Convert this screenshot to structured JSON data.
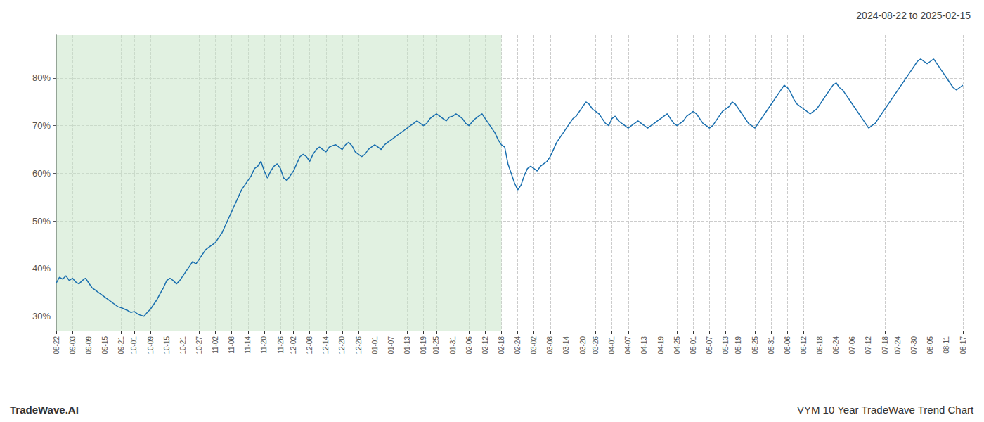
{
  "chart_data": {
    "type": "line",
    "title": "2024-08-22 to 2025-02-15",
    "annotations": [
      "TradeWave.AI",
      "VYM 10 Year TradeWave Trend Chart"
    ],
    "color": "#1a6faf",
    "grid": true,
    "ylim": [
      27,
      89
    ],
    "yticks": [
      {
        "value": 30,
        "label": "30%"
      },
      {
        "value": 40,
        "label": "40%"
      },
      {
        "value": 50,
        "label": "50%"
      },
      {
        "value": 60,
        "label": "60%"
      },
      {
        "value": 70,
        "label": "70%"
      },
      {
        "value": 80,
        "label": "80%"
      }
    ],
    "shade": {
      "from": "08-22",
      "to": "02-18",
      "color": "#c8e6c8"
    },
    "categories": [
      "08-22",
      null,
      null,
      null,
      null,
      "09-03",
      null,
      null,
      null,
      null,
      "09-09",
      null,
      null,
      null,
      null,
      "09-15",
      null,
      null,
      null,
      null,
      "09-21",
      null,
      null,
      null,
      "10-01",
      null,
      null,
      null,
      null,
      "10-09",
      null,
      null,
      null,
      null,
      "10-15",
      null,
      null,
      null,
      null,
      "10-21",
      null,
      null,
      null,
      null,
      "10-27",
      null,
      null,
      null,
      null,
      "11-02",
      null,
      null,
      null,
      null,
      "11-08",
      null,
      null,
      null,
      null,
      "11-14",
      null,
      null,
      null,
      null,
      "11-20",
      null,
      null,
      null,
      null,
      "11-26",
      null,
      null,
      null,
      "12-02",
      null,
      null,
      null,
      null,
      "12-08",
      null,
      null,
      null,
      null,
      "12-14",
      null,
      null,
      null,
      null,
      "12-20",
      null,
      null,
      null,
      null,
      "12-26",
      null,
      null,
      null,
      null,
      "01-01",
      null,
      null,
      null,
      null,
      "01-07",
      null,
      null,
      null,
      null,
      "01-13",
      null,
      null,
      null,
      null,
      "01-19",
      null,
      null,
      null,
      "01-25",
      null,
      null,
      null,
      null,
      "01-31",
      null,
      null,
      null,
      null,
      "02-06",
      null,
      null,
      null,
      null,
      "02-12",
      null,
      null,
      null,
      null,
      "02-18",
      null,
      null,
      null,
      null,
      "02-24",
      null,
      null,
      null,
      null,
      "03-02",
      null,
      null,
      null,
      null,
      "03-08",
      null,
      null,
      null,
      null,
      "03-14",
      null,
      null,
      null,
      null,
      "03-20",
      null,
      null,
      null,
      "03-26",
      null,
      null,
      null,
      null,
      "04-01",
      null,
      null,
      null,
      null,
      "04-07",
      null,
      null,
      null,
      null,
      "04-13",
      null,
      null,
      null,
      null,
      "04-19",
      null,
      null,
      null,
      null,
      "04-25",
      null,
      null,
      null,
      null,
      "05-01",
      null,
      null,
      null,
      null,
      "05-07",
      null,
      null,
      null,
      null,
      "05-13",
      null,
      null,
      null,
      "05-19",
      null,
      null,
      null,
      null,
      "05-25",
      null,
      null,
      null,
      null,
      "05-31",
      null,
      null,
      null,
      null,
      "06-06",
      null,
      null,
      null,
      null,
      "06-12",
      null,
      null,
      null,
      null,
      "06-18",
      null,
      null,
      null,
      null,
      "06-24",
      null,
      null,
      null,
      null,
      "07-06",
      null,
      null,
      null,
      null,
      "07-12",
      null,
      null,
      null,
      null,
      "07-18",
      null,
      null,
      null,
      "07-24",
      null,
      null,
      null,
      null,
      "07-30",
      null,
      null,
      null,
      null,
      "08-05",
      null,
      null,
      null,
      null,
      "08-11",
      null,
      null,
      null,
      null,
      "08-17"
    ],
    "values": [
      37.0,
      38.2,
      37.8,
      38.5,
      37.5,
      38.0,
      37.2,
      36.8,
      37.5,
      38.0,
      37.0,
      36.0,
      35.5,
      35.0,
      34.5,
      34.0,
      33.5,
      33.0,
      32.5,
      32.0,
      31.8,
      31.5,
      31.2,
      30.8,
      31.0,
      30.5,
      30.2,
      30.0,
      30.8,
      31.5,
      32.5,
      33.5,
      34.8,
      36.0,
      37.5,
      38.0,
      37.5,
      36.8,
      37.5,
      38.5,
      39.5,
      40.5,
      41.5,
      41.0,
      42.0,
      43.0,
      44.0,
      44.5,
      45.0,
      45.5,
      46.5,
      47.5,
      49.0,
      50.5,
      52.0,
      53.5,
      55.0,
      56.5,
      57.5,
      58.5,
      59.5,
      61.0,
      61.5,
      62.5,
      60.5,
      59.0,
      60.5,
      61.5,
      62.0,
      61.0,
      59.0,
      58.5,
      59.5,
      60.5,
      62.0,
      63.5,
      64.0,
      63.5,
      62.5,
      64.0,
      65.0,
      65.5,
      65.0,
      64.5,
      65.5,
      65.8,
      66.0,
      65.5,
      65.0,
      66.0,
      66.5,
      65.8,
      64.5,
      64.0,
      63.5,
      64.0,
      65.0,
      65.5,
      66.0,
      65.5,
      65.0,
      66.0,
      66.5,
      67.0,
      67.5,
      68.0,
      68.5,
      69.0,
      69.5,
      70.0,
      70.5,
      71.0,
      70.5,
      70.0,
      70.5,
      71.5,
      72.0,
      72.5,
      72.0,
      71.5,
      71.0,
      71.8,
      72.0,
      72.5,
      72.0,
      71.5,
      70.5,
      70.0,
      70.8,
      71.5,
      72.0,
      72.5,
      71.5,
      70.5,
      69.5,
      68.5,
      67.0,
      66.0,
      65.5,
      62.0,
      60.0,
      58.0,
      56.5,
      57.5,
      59.5,
      61.0,
      61.5,
      61.0,
      60.5,
      61.5,
      62.0,
      62.5,
      63.5,
      65.0,
      66.5,
      67.5,
      68.5,
      69.5,
      70.5,
      71.5,
      72.0,
      73.0,
      74.0,
      75.0,
      74.5,
      73.5,
      73.0,
      72.5,
      71.5,
      70.5,
      70.0,
      71.5,
      72.0,
      71.0,
      70.5,
      70.0,
      69.5,
      70.0,
      70.5,
      71.0,
      70.5,
      70.0,
      69.5,
      70.0,
      70.5,
      71.0,
      71.5,
      72.0,
      72.5,
      71.5,
      70.5,
      70.0,
      70.5,
      71.0,
      72.0,
      72.5,
      73.0,
      72.5,
      71.5,
      70.5,
      70.0,
      69.5,
      70.0,
      71.0,
      72.0,
      73.0,
      73.5,
      74.0,
      75.0,
      74.5,
      73.5,
      72.5,
      71.5,
      70.5,
      70.0,
      69.5,
      70.5,
      71.5,
      72.5,
      73.5,
      74.5,
      75.5,
      76.5,
      77.5,
      78.5,
      78.0,
      77.0,
      75.5,
      74.5,
      74.0,
      73.5,
      73.0,
      72.5,
      73.0,
      73.5,
      74.5,
      75.5,
      76.5,
      77.5,
      78.5,
      79.0,
      78.0,
      77.5,
      76.5,
      75.5,
      74.5,
      73.5,
      72.5,
      71.5,
      70.5,
      69.5,
      70.0,
      70.5,
      71.5,
      72.5,
      73.5,
      74.5,
      75.5,
      76.5,
      77.5,
      78.5,
      79.5,
      80.5,
      81.5,
      82.5,
      83.5,
      84.0,
      83.5,
      83.0,
      83.5,
      84.0,
      83.0,
      82.0,
      81.0,
      80.0,
      79.0,
      78.0,
      77.5,
      78.0,
      78.5
    ]
  }
}
